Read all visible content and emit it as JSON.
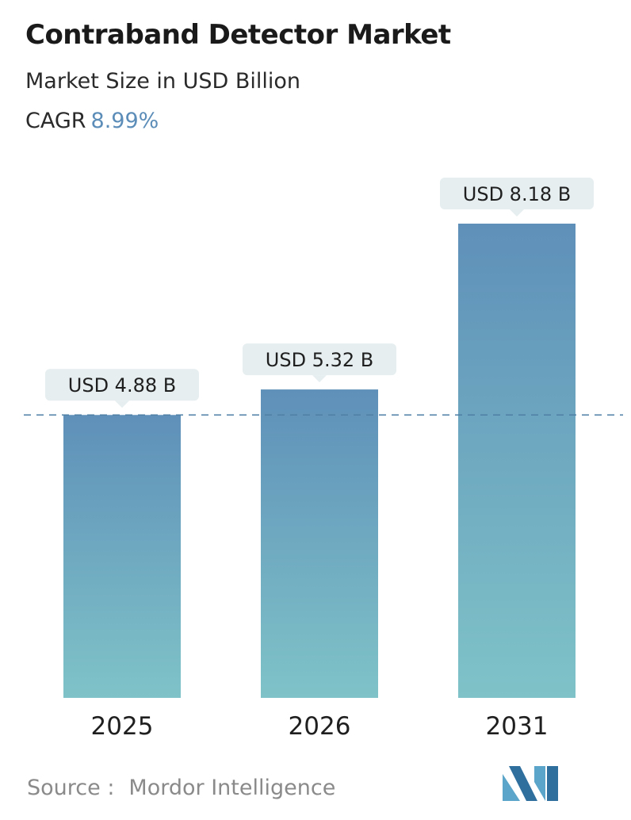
{
  "header": {
    "title": "Contraband Detector Market",
    "subtitle": "Market Size in USD Billion",
    "cagr_label": "CAGR",
    "cagr_value": "8.99%"
  },
  "chart_data": {
    "type": "bar",
    "categories": [
      "2025",
      "2026",
      "2031"
    ],
    "values": [
      4.88,
      5.32,
      8.18
    ],
    "data_labels": [
      "USD 4.88 B",
      "USD 5.32 B",
      "USD 8.18 B"
    ],
    "reference_line": 4.88,
    "ylim": [
      0,
      8.18
    ],
    "title": "Contraband Detector Market",
    "ylabel": "",
    "xlabel": "",
    "grid": false,
    "colors": {
      "bar_top": "#5f90b9",
      "bar_bottom": "#7fc3c8",
      "label_bg": "#e6eef0",
      "reference_line": "#4f7fa5"
    }
  },
  "footer": {
    "source_label": "Source :",
    "source_name": "Mordor Intelligence",
    "logo_colors": [
      "#5aa5c9",
      "#2e6f9e"
    ]
  }
}
